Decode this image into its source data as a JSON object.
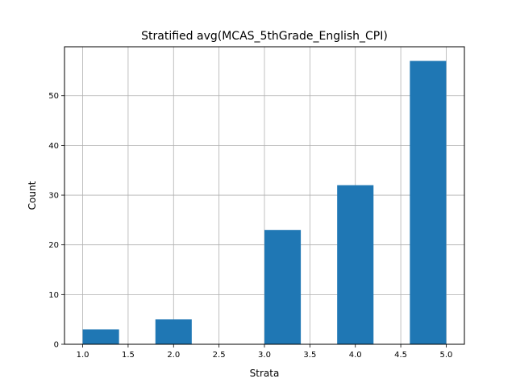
{
  "chart_data": {
    "type": "bar",
    "title": "Stratified avg(MCAS_5thGrade_English_CPI)",
    "xlabel": "Strata",
    "ylabel": "Count",
    "xlim": [
      0.8,
      5.2
    ],
    "ylim": [
      0,
      59.85
    ],
    "xticks": [
      "1.0",
      "1.5",
      "2.0",
      "2.5",
      "3.0",
      "3.5",
      "4.0",
      "4.5",
      "5.0"
    ],
    "xtick_values": [
      1.0,
      1.5,
      2.0,
      2.5,
      3.0,
      3.5,
      4.0,
      4.5,
      5.0
    ],
    "yticks": [
      "0",
      "10",
      "20",
      "30",
      "40",
      "50"
    ],
    "ytick_values": [
      0,
      10,
      20,
      30,
      40,
      50
    ],
    "grid": true,
    "bar_color": "#1f77b4",
    "bins": [
      {
        "start": 1.0,
        "end": 1.4,
        "count": 3
      },
      {
        "start": 1.8,
        "end": 2.2,
        "count": 5
      },
      {
        "start": 3.0,
        "end": 3.4,
        "count": 23
      },
      {
        "start": 3.8,
        "end": 4.2,
        "count": 32
      },
      {
        "start": 4.6,
        "end": 5.0,
        "count": 57
      }
    ]
  }
}
